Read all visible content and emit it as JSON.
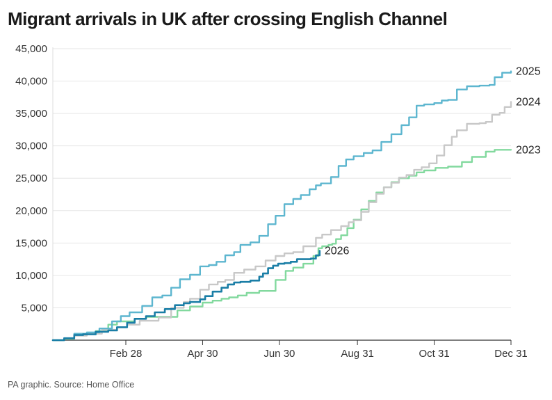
{
  "source": "PA graphic. Source: Home Office",
  "chart_data": {
    "type": "line",
    "title": "Migrant arrivals in UK after crossing English Channel",
    "xlabel": "",
    "ylabel": "",
    "x_unit": "day of year",
    "xlim": [
      1,
      365
    ],
    "ylim": [
      0,
      45000
    ],
    "y_ticks": [
      5000,
      10000,
      15000,
      20000,
      25000,
      30000,
      35000,
      40000,
      45000
    ],
    "y_tick_labels": [
      "5,000",
      "10,000",
      "15,000",
      "20,000",
      "25,000",
      "30,000",
      "35,000",
      "40,000",
      "45,000"
    ],
    "x_ticks": [
      59,
      120,
      181,
      243,
      304,
      365
    ],
    "x_tick_labels": [
      "Feb 28",
      "Apr 30",
      "Jun 30",
      "Aug 31",
      "Oct 31",
      "Dec 31"
    ],
    "grid": "horizontal",
    "legend": "none",
    "series": [
      {
        "name": "2023",
        "color": "#82d99e",
        "x": [
          1,
          10,
          18,
          25,
          35,
          45,
          52,
          60,
          66,
          75,
          88,
          100,
          110,
          120,
          128,
          135,
          141,
          148,
          155,
          165,
          172,
          178,
          186,
          192,
          200,
          208,
          212,
          215,
          220,
          223,
          226,
          230,
          235,
          240,
          246,
          252,
          258,
          264,
          270,
          276,
          284,
          290,
          296,
          305,
          315,
          320,
          326,
          334,
          345,
          352,
          358,
          365
        ],
        "y": [
          0,
          200,
          800,
          1000,
          1400,
          2400,
          2900,
          2900,
          3300,
          3600,
          3600,
          4600,
          5200,
          5800,
          6100,
          6400,
          6600,
          6900,
          7300,
          7600,
          7600,
          9300,
          10700,
          11200,
          11800,
          13000,
          14200,
          14500,
          14700,
          14900,
          15600,
          16200,
          17300,
          18600,
          20200,
          21500,
          22800,
          23600,
          24400,
          25000,
          25400,
          25900,
          26200,
          26600,
          26800,
          26800,
          27500,
          28300,
          29100,
          29400,
          29400,
          29400
        ]
      },
      {
        "name": "2024",
        "color": "#c8c8c8",
        "x": [
          1,
          10,
          18,
          28,
          40,
          52,
          60,
          70,
          85,
          95,
          105,
          110,
          118,
          125,
          132,
          138,
          145,
          153,
          162,
          170,
          178,
          185,
          192,
          200,
          210,
          215,
          222,
          230,
          236,
          240,
          246,
          252,
          258,
          264,
          270,
          276,
          282,
          288,
          294,
          300,
          306,
          312,
          318,
          322,
          330,
          340,
          345,
          350,
          356,
          360,
          365
        ],
        "y": [
          0,
          300,
          700,
          1000,
          1600,
          2000,
          2400,
          3000,
          3500,
          5000,
          5900,
          6400,
          7800,
          8600,
          9000,
          9300,
          10400,
          10900,
          11400,
          12300,
          13000,
          13400,
          13600,
          14500,
          15800,
          16300,
          17000,
          17600,
          18200,
          18500,
          19800,
          21300,
          22600,
          23600,
          24300,
          25100,
          25500,
          26300,
          26700,
          27300,
          28500,
          30100,
          31400,
          32400,
          33400,
          33500,
          33700,
          34800,
          35100,
          36000,
          36800
        ]
      },
      {
        "name": "2025",
        "color": "#5db6cf",
        "x": [
          1,
          10,
          18,
          28,
          38,
          48,
          55,
          62,
          72,
          80,
          88,
          95,
          102,
          110,
          118,
          125,
          131,
          138,
          145,
          150,
          158,
          165,
          172,
          178,
          185,
          192,
          198,
          205,
          210,
          214,
          222,
          228,
          234,
          240,
          248,
          255,
          262,
          270,
          278,
          284,
          290,
          296,
          304,
          310,
          315,
          322,
          330,
          340,
          348,
          352,
          358,
          365
        ],
        "y": [
          0,
          300,
          1000,
          1200,
          1800,
          2900,
          3700,
          4300,
          5300,
          6600,
          6900,
          8100,
          9400,
          10100,
          11400,
          11600,
          12100,
          13100,
          13600,
          14700,
          15100,
          16100,
          17900,
          19200,
          21000,
          21800,
          22400,
          23300,
          23900,
          24200,
          25200,
          26900,
          27900,
          28400,
          28900,
          29300,
          30600,
          31800,
          33200,
          34400,
          36200,
          36400,
          36600,
          37000,
          37100,
          38700,
          39200,
          39300,
          39400,
          40600,
          41300,
          41500
        ]
      },
      {
        "name": "2026",
        "color": "#1a7ea6",
        "x": [
          1,
          10,
          18,
          25,
          35,
          45,
          52,
          60,
          66,
          75,
          82,
          90,
          98,
          105,
          110,
          118,
          122,
          128,
          135,
          140,
          145,
          150,
          158,
          165,
          168,
          172,
          176,
          180,
          185,
          190,
          195,
          202,
          206,
          210,
          213
        ],
        "y": [
          0,
          300,
          800,
          900,
          1300,
          1500,
          2000,
          2700,
          3300,
          3700,
          4300,
          4800,
          5400,
          5700,
          5900,
          6300,
          6800,
          7500,
          8100,
          8600,
          8900,
          9000,
          9200,
          9800,
          10300,
          11100,
          11500,
          11800,
          11900,
          12100,
          12500,
          12500,
          12600,
          13100,
          13800
        ]
      }
    ]
  }
}
